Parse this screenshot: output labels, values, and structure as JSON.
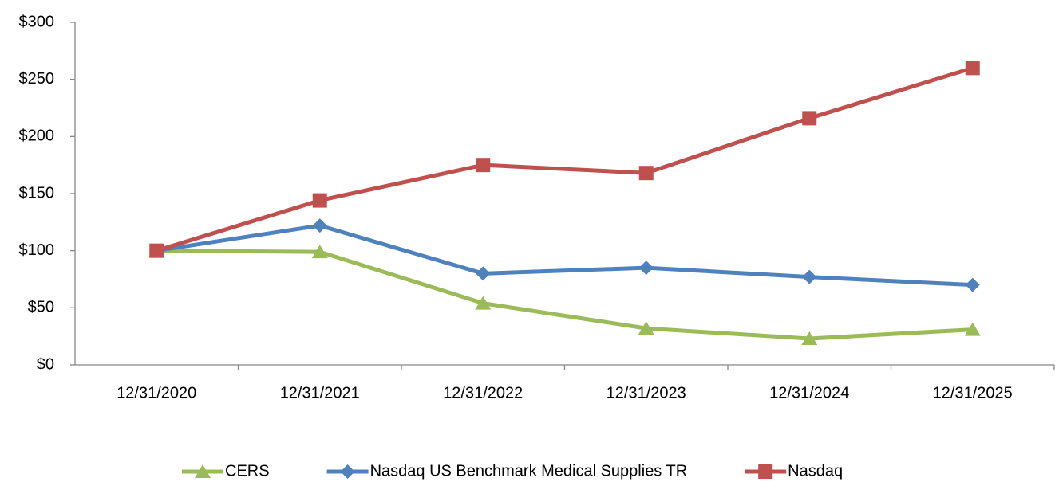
{
  "chart_data": {
    "type": "line",
    "categories": [
      "12/31/2020",
      "12/31/2021",
      "12/31/2022",
      "12/31/2023",
      "12/31/2024",
      "12/31/2025"
    ],
    "series": [
      {
        "name": "CERS",
        "color": "#9bbb59",
        "marker": "triangle",
        "values": [
          100,
          99,
          54,
          32,
          23,
          31
        ]
      },
      {
        "name": "Nasdaq US Benchmark Medical Supplies TR",
        "color": "#4f81bd",
        "marker": "diamond",
        "values": [
          100,
          122,
          80,
          85,
          77,
          70
        ]
      },
      {
        "name": "Nasdaq",
        "color": "#c0504d",
        "marker": "square",
        "values": [
          100,
          144,
          175,
          168,
          216,
          260
        ]
      }
    ],
    "ylim": [
      0,
      300
    ],
    "yticks": [
      {
        "value": 0,
        "label": "$0"
      },
      {
        "value": 50,
        "label": "$50"
      },
      {
        "value": 100,
        "label": "$100"
      },
      {
        "value": 150,
        "label": "$150"
      },
      {
        "value": 200,
        "label": "$200"
      },
      {
        "value": 250,
        "label": "$250"
      },
      {
        "value": 300,
        "label": "$300"
      }
    ],
    "grid": false,
    "legend": "bottom"
  }
}
